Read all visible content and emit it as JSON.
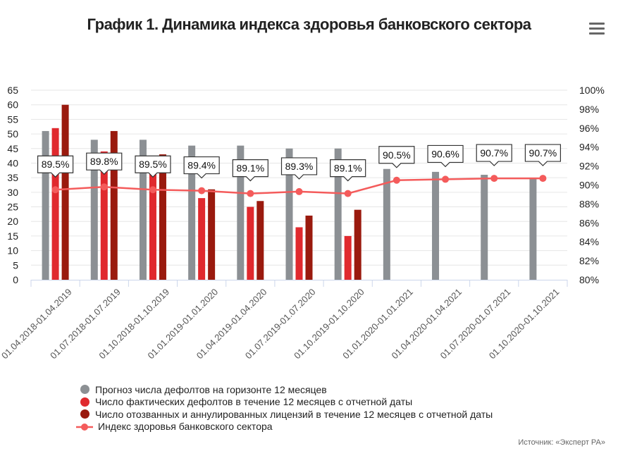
{
  "title": "График 1. Динамика индекса здоровья банковского сектора",
  "source": "Источник: «Эксперт РА»",
  "chart_data": {
    "type": "bar+line",
    "title": "График 1. Динамика индекса здоровья банковского сектора",
    "categories": [
      "01.04.2018-01.04.2019",
      "01.07.2018-01.07.2019",
      "01.10.2018-01.10.2019",
      "01.01.2019-01.01.2020",
      "01.04.2019-01.04.2020",
      "01.07.2019-01.07.2020",
      "01.10.2019-01.10.2020",
      "01.01.2020-01.01.2021",
      "01.04.2020-01.04.2021",
      "01.07.2020-01.07.2021",
      "01.10.2020-01.10.2021"
    ],
    "ylim_left": [
      0,
      65
    ],
    "yticks_left": [
      "0",
      "5",
      "10",
      "15",
      "20",
      "25",
      "30",
      "35",
      "40",
      "45",
      "50",
      "55",
      "60",
      "65"
    ],
    "ylim_right": [
      80,
      100
    ],
    "yticks_right": [
      "80%",
      "82%",
      "84%",
      "86%",
      "88%",
      "90%",
      "92%",
      "94%",
      "96%",
      "98%",
      "100%"
    ],
    "grid": true,
    "legend_position": "bottom",
    "series": [
      {
        "name": "Прогноз числа дефолтов на горизонте 12 месяцев",
        "type": "bar",
        "axis": "left",
        "color": "#8c9094",
        "values": [
          51,
          48,
          48,
          46,
          46,
          45,
          45,
          38,
          37,
          36,
          35
        ]
      },
      {
        "name": "Число фактических дефолтов в течение 12 месяцев с отчетной даты",
        "type": "bar",
        "axis": "left",
        "color": "#e0292e",
        "values": [
          52,
          44,
          37,
          28,
          25,
          18,
          15,
          null,
          null,
          null,
          null
        ]
      },
      {
        "name": "Число отозванных и аннулированных лицензий в течение 12 месяцев с отчетной даты",
        "type": "bar",
        "axis": "left",
        "color": "#9a1a0e",
        "values": [
          60,
          51,
          43,
          31,
          27,
          22,
          24,
          null,
          null,
          null,
          null
        ]
      },
      {
        "name": "Индекс здоровья банковского сектора",
        "type": "line",
        "axis": "right",
        "color": "#f45b5b",
        "values": [
          89.5,
          89.8,
          89.5,
          89.4,
          89.1,
          89.3,
          89.1,
          90.5,
          90.6,
          90.7,
          90.7
        ],
        "labels": [
          "89.5%",
          "89.8%",
          "89.5%",
          "89.4%",
          "89.1%",
          "89.3%",
          "89.1%",
          "90.5%",
          "90.6%",
          "90.7%",
          "90.7%"
        ]
      }
    ]
  }
}
